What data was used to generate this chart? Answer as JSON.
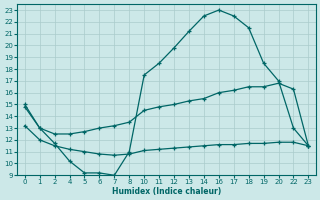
{
  "xlabel": "Humidex (Indice chaleur)",
  "bg_color": "#cce8e8",
  "grid_color": "#aacccc",
  "line_color": "#006666",
  "tick_labels": [
    "0",
    "1",
    "2",
    "4",
    "5",
    "6",
    "7",
    "8",
    "10",
    "11",
    "12",
    "13",
    "14",
    "16",
    "17",
    "18",
    "19",
    "20",
    "22",
    "23"
  ],
  "line1_y": [
    15.0,
    13.0,
    11.7,
    10.2,
    9.2,
    9.2,
    9.0,
    11.0,
    17.5,
    18.5,
    19.8,
    21.2,
    22.5,
    23.0,
    22.5,
    21.5,
    18.5,
    17.0,
    13.0,
    11.5
  ],
  "line2_y": [
    14.8,
    13.0,
    12.5,
    12.5,
    12.7,
    13.0,
    13.2,
    13.5,
    14.5,
    14.8,
    15.0,
    15.3,
    15.5,
    16.0,
    16.2,
    16.5,
    16.5,
    16.8,
    16.3,
    11.5
  ],
  "line3_y": [
    13.2,
    12.0,
    11.5,
    11.2,
    11.0,
    10.8,
    10.7,
    10.8,
    11.1,
    11.2,
    11.3,
    11.4,
    11.5,
    11.6,
    11.6,
    11.7,
    11.7,
    11.8,
    11.8,
    11.5
  ],
  "ylim": [
    9,
    23.5
  ],
  "yticks": [
    9,
    10,
    11,
    12,
    13,
    14,
    15,
    16,
    17,
    18,
    19,
    20,
    21,
    22,
    23
  ]
}
